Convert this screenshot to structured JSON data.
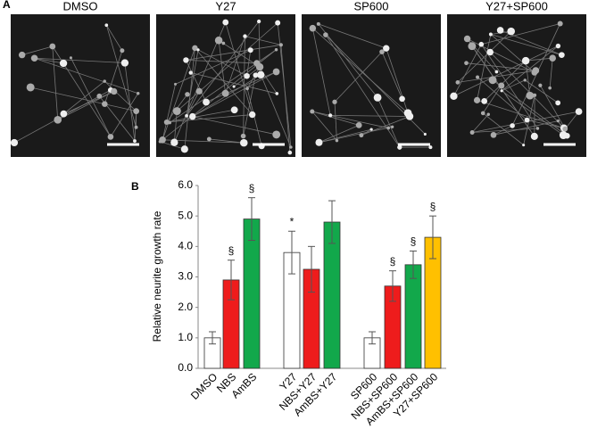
{
  "panels": {
    "a": "A",
    "b": "B"
  },
  "images": [
    {
      "label": "DMSO"
    },
    {
      "label": "Y27"
    },
    {
      "label": "SP600"
    },
    {
      "label": "Y27+SP600"
    }
  ],
  "chart_data": {
    "type": "bar",
    "y_label": "Relative neurite growth rate",
    "categories": [
      "DMSO",
      "NBS",
      "AmBS",
      "Y27",
      "NBS+Y27",
      "AmBS+Y27",
      "SP600",
      "NBS+SP600",
      "AmBS+SP600",
      "Y27+SP600"
    ],
    "values": [
      1.0,
      2.9,
      4.9,
      3.8,
      3.25,
      4.8,
      1.0,
      2.7,
      3.4,
      4.3
    ],
    "errors": [
      0.2,
      0.65,
      0.7,
      0.7,
      0.75,
      0.7,
      0.2,
      0.5,
      0.45,
      0.7
    ],
    "colors": [
      "#ffffff",
      "#ee1c1c",
      "#12a84b",
      "#ffffff",
      "#ee1c1c",
      "#12a84b",
      "#ffffff",
      "#ee1c1c",
      "#12a84b",
      "#ffc000"
    ],
    "significance": [
      null,
      "§",
      "§",
      "*",
      null,
      null,
      null,
      "§",
      "§",
      "§"
    ],
    "ylim": [
      0,
      6
    ],
    "yticks": [
      {
        "value": 0,
        "label": "0.0"
      },
      {
        "value": 1,
        "label": "1.0"
      },
      {
        "value": 2,
        "label": "2.0"
      },
      {
        "value": 3,
        "label": "3.0"
      },
      {
        "value": 4,
        "label": "4.0"
      },
      {
        "value": 5,
        "label": "5.0"
      },
      {
        "value": 6,
        "label": "6.0"
      }
    ],
    "grid": false
  }
}
